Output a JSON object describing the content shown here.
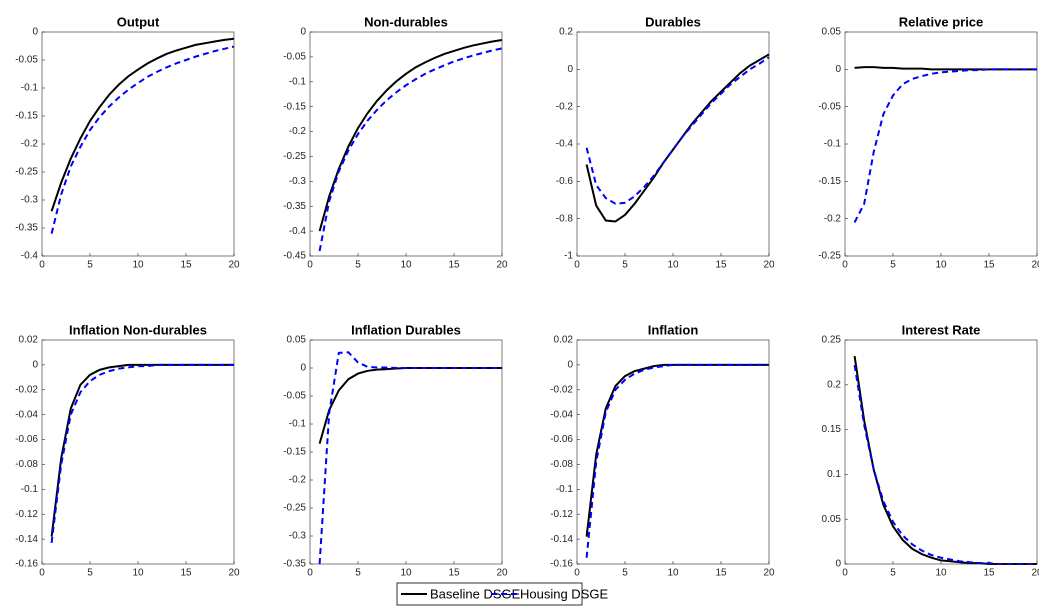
{
  "chart_data": [
    {
      "type": "line",
      "title": "Output",
      "x": [
        1,
        2,
        3,
        4,
        5,
        6,
        7,
        8,
        9,
        10,
        11,
        12,
        13,
        14,
        15,
        16,
        17,
        18,
        19,
        20
      ],
      "xlim": [
        0,
        20
      ],
      "xticks": [
        0,
        5,
        10,
        15,
        20
      ],
      "ylim": [
        -0.4,
        0
      ],
      "yticks": [
        -0.4,
        -0.35,
        -0.3,
        -0.25,
        -0.2,
        -0.15,
        -0.1,
        -0.05,
        0
      ],
      "series": [
        {
          "name": "Baseline DSGE",
          "color": "#000000",
          "linestyle": "solid",
          "values": [
            -0.32,
            -0.269,
            -0.226,
            -0.19,
            -0.159,
            -0.134,
            -0.112,
            -0.094,
            -0.079,
            -0.067,
            -0.056,
            -0.047,
            -0.039,
            -0.033,
            -0.028,
            -0.023,
            -0.02,
            -0.017,
            -0.014,
            -0.012
          ]
        },
        {
          "name": "Housing DSGE",
          "color": "#0000ff",
          "linestyle": "dashed",
          "values": [
            -0.36,
            -0.29,
            -0.24,
            -0.205,
            -0.175,
            -0.152,
            -0.133,
            -0.117,
            -0.103,
            -0.091,
            -0.08,
            -0.071,
            -0.063,
            -0.056,
            -0.05,
            -0.044,
            -0.039,
            -0.034,
            -0.03,
            -0.026
          ]
        }
      ]
    },
    {
      "type": "line",
      "title": "Non-durables",
      "x": [
        1,
        2,
        3,
        4,
        5,
        6,
        7,
        8,
        9,
        10,
        11,
        12,
        13,
        14,
        15,
        16,
        17,
        18,
        19,
        20
      ],
      "xlim": [
        0,
        20
      ],
      "xticks": [
        0,
        5,
        10,
        15,
        20
      ],
      "ylim": [
        -0.45,
        0
      ],
      "yticks": [
        -0.45,
        -0.4,
        -0.35,
        -0.3,
        -0.25,
        -0.2,
        -0.15,
        -0.1,
        -0.05,
        0
      ],
      "series": [
        {
          "name": "Baseline DSGE",
          "color": "#000000",
          "linestyle": "solid",
          "values": [
            -0.4,
            -0.33,
            -0.275,
            -0.23,
            -0.193,
            -0.163,
            -0.138,
            -0.117,
            -0.099,
            -0.084,
            -0.071,
            -0.061,
            -0.052,
            -0.044,
            -0.038,
            -0.032,
            -0.027,
            -0.023,
            -0.019,
            -0.016
          ]
        },
        {
          "name": "Housing DSGE",
          "color": "#0000ff",
          "linestyle": "dashed",
          "values": [
            -0.44,
            -0.34,
            -0.28,
            -0.238,
            -0.205,
            -0.178,
            -0.156,
            -0.137,
            -0.121,
            -0.107,
            -0.095,
            -0.084,
            -0.075,
            -0.067,
            -0.059,
            -0.053,
            -0.047,
            -0.042,
            -0.037,
            -0.033
          ]
        }
      ]
    },
    {
      "type": "line",
      "title": "Durables",
      "x": [
        1,
        2,
        3,
        4,
        5,
        6,
        7,
        8,
        9,
        10,
        11,
        12,
        13,
        14,
        15,
        16,
        17,
        18,
        19,
        20
      ],
      "xlim": [
        0,
        20
      ],
      "xticks": [
        0,
        5,
        10,
        15,
        20
      ],
      "ylim": [
        -1,
        0.2
      ],
      "yticks": [
        -1,
        -0.8,
        -0.6,
        -0.4,
        -0.2,
        0,
        0.2
      ],
      "series": [
        {
          "name": "Baseline DSGE",
          "color": "#000000",
          "linestyle": "solid",
          "values": [
            -0.51,
            -0.73,
            -0.81,
            -0.815,
            -0.78,
            -0.72,
            -0.65,
            -0.58,
            -0.5,
            -0.43,
            -0.36,
            -0.29,
            -0.23,
            -0.17,
            -0.12,
            -0.07,
            -0.02,
            0.02,
            0.05,
            0.08
          ]
        },
        {
          "name": "Housing DSGE",
          "color": "#0000ff",
          "linestyle": "dashed",
          "values": [
            -0.42,
            -0.62,
            -0.69,
            -0.72,
            -0.715,
            -0.68,
            -0.63,
            -0.57,
            -0.5,
            -0.43,
            -0.36,
            -0.3,
            -0.24,
            -0.18,
            -0.13,
            -0.08,
            -0.04,
            0,
            0.03,
            0.065
          ]
        }
      ]
    },
    {
      "type": "line",
      "title": "Relative price",
      "x": [
        1,
        2,
        3,
        4,
        5,
        6,
        7,
        8,
        9,
        10,
        11,
        12,
        13,
        14,
        15,
        16,
        17,
        18,
        19,
        20
      ],
      "xlim": [
        0,
        20
      ],
      "xticks": [
        0,
        5,
        10,
        15,
        20
      ],
      "ylim": [
        -0.25,
        0.05
      ],
      "yticks": [
        -0.25,
        -0.2,
        -0.15,
        -0.1,
        -0.05,
        0,
        0.05
      ],
      "series": [
        {
          "name": "Baseline DSGE",
          "color": "#000000",
          "linestyle": "solid",
          "values": [
            0.002,
            0.003,
            0.003,
            0.002,
            0.002,
            0.001,
            0.001,
            0.001,
            0,
            0,
            0,
            0,
            0,
            0,
            0,
            0,
            0,
            0,
            0,
            0
          ]
        },
        {
          "name": "Housing DSGE",
          "color": "#0000ff",
          "linestyle": "dashed",
          "values": [
            -0.205,
            -0.18,
            -0.11,
            -0.06,
            -0.035,
            -0.02,
            -0.013,
            -0.009,
            -0.006,
            -0.004,
            -0.003,
            -0.002,
            -0.001,
            -0.001,
            0,
            0,
            0,
            0,
            0,
            0
          ]
        }
      ]
    },
    {
      "type": "line",
      "title": "Inflation Non-durables",
      "x": [
        1,
        2,
        3,
        4,
        5,
        6,
        7,
        8,
        9,
        10,
        11,
        12,
        13,
        14,
        15,
        16,
        17,
        18,
        19,
        20
      ],
      "xlim": [
        0,
        20
      ],
      "xticks": [
        0,
        5,
        10,
        15,
        20
      ],
      "ylim": [
        -0.16,
        0.02
      ],
      "yticks": [
        -0.16,
        -0.14,
        -0.12,
        -0.1,
        -0.08,
        -0.06,
        -0.04,
        -0.02,
        0,
        0.02
      ],
      "series": [
        {
          "name": "Baseline DSGE",
          "color": "#000000",
          "linestyle": "solid",
          "values": [
            -0.138,
            -0.075,
            -0.035,
            -0.016,
            -0.008,
            -0.004,
            -0.002,
            -0.001,
            0,
            0,
            0,
            0,
            0,
            0,
            0,
            0,
            0,
            0,
            0,
            0
          ]
        },
        {
          "name": "Housing DSGE",
          "color": "#0000ff",
          "linestyle": "dashed",
          "values": [
            -0.143,
            -0.08,
            -0.04,
            -0.022,
            -0.013,
            -0.008,
            -0.005,
            -0.003,
            -0.002,
            -0.001,
            -0.001,
            0,
            0,
            0,
            0,
            0,
            0,
            0,
            0,
            0
          ]
        }
      ]
    },
    {
      "type": "line",
      "title": "Inflation Durables",
      "x": [
        1,
        2,
        3,
        4,
        5,
        6,
        7,
        8,
        9,
        10,
        11,
        12,
        13,
        14,
        15,
        16,
        17,
        18,
        19,
        20
      ],
      "xlim": [
        0,
        20
      ],
      "xticks": [
        0,
        5,
        10,
        15,
        20
      ],
      "ylim": [
        -0.35,
        0.05
      ],
      "yticks": [
        -0.35,
        -0.3,
        -0.25,
        -0.2,
        -0.15,
        -0.1,
        -0.05,
        0,
        0.05
      ],
      "series": [
        {
          "name": "Baseline DSGE",
          "color": "#000000",
          "linestyle": "solid",
          "values": [
            -0.135,
            -0.075,
            -0.04,
            -0.02,
            -0.01,
            -0.005,
            -0.003,
            -0.002,
            -0.001,
            0,
            0,
            0,
            0,
            0,
            0,
            0,
            0,
            0,
            0,
            0
          ]
        },
        {
          "name": "Housing DSGE",
          "color": "#0000ff",
          "linestyle": "dashed",
          "values": [
            -0.35,
            -0.08,
            0.027,
            0.028,
            0.01,
            0.002,
            0.001,
            0.001,
            0,
            0,
            0,
            0,
            0,
            0,
            0,
            0,
            0,
            0,
            0,
            0
          ]
        }
      ]
    },
    {
      "type": "line",
      "title": "Inflation",
      "x": [
        1,
        2,
        3,
        4,
        5,
        6,
        7,
        8,
        9,
        10,
        11,
        12,
        13,
        14,
        15,
        16,
        17,
        18,
        19,
        20
      ],
      "xlim": [
        0,
        20
      ],
      "xticks": [
        0,
        5,
        10,
        15,
        20
      ],
      "ylim": [
        -0.16,
        0.02
      ],
      "yticks": [
        -0.16,
        -0.14,
        -0.12,
        -0.1,
        -0.08,
        -0.06,
        -0.04,
        -0.02,
        0,
        0.02
      ],
      "series": [
        {
          "name": "Baseline DSGE",
          "color": "#000000",
          "linestyle": "solid",
          "values": [
            -0.138,
            -0.072,
            -0.035,
            -0.017,
            -0.009,
            -0.005,
            -0.003,
            -0.001,
            0,
            0,
            0,
            0,
            0,
            0,
            0,
            0,
            0,
            0,
            0,
            0
          ]
        },
        {
          "name": "Housing DSGE",
          "color": "#0000ff",
          "linestyle": "dashed",
          "values": [
            -0.155,
            -0.078,
            -0.038,
            -0.02,
            -0.012,
            -0.007,
            -0.004,
            -0.002,
            -0.001,
            0,
            0,
            0,
            0,
            0,
            0,
            0,
            0,
            0,
            0,
            0
          ]
        }
      ]
    },
    {
      "type": "line",
      "title": "Interest Rate",
      "x": [
        1,
        2,
        3,
        4,
        5,
        6,
        7,
        8,
        9,
        10,
        11,
        12,
        13,
        14,
        15,
        16,
        17,
        18,
        19,
        20
      ],
      "xlim": [
        0,
        20
      ],
      "xticks": [
        0,
        5,
        10,
        15,
        20
      ],
      "ylim": [
        0,
        0.25
      ],
      "yticks": [
        0,
        0.05,
        0.1,
        0.15,
        0.2,
        0.25
      ],
      "series": [
        {
          "name": "Baseline DSGE",
          "color": "#000000",
          "linestyle": "solid",
          "values": [
            0.232,
            0.16,
            0.105,
            0.066,
            0.042,
            0.027,
            0.017,
            0.011,
            0.007,
            0.004,
            0.003,
            0.002,
            0.001,
            0.001,
            0,
            0,
            0,
            0,
            0,
            0
          ]
        },
        {
          "name": "Housing DSGE",
          "color": "#0000ff",
          "linestyle": "dashed",
          "values": [
            0.222,
            0.155,
            0.105,
            0.07,
            0.047,
            0.032,
            0.022,
            0.015,
            0.01,
            0.007,
            0.005,
            0.003,
            0.002,
            0.001,
            0.001,
            0,
            0,
            0,
            0,
            0
          ]
        }
      ]
    }
  ]
}
